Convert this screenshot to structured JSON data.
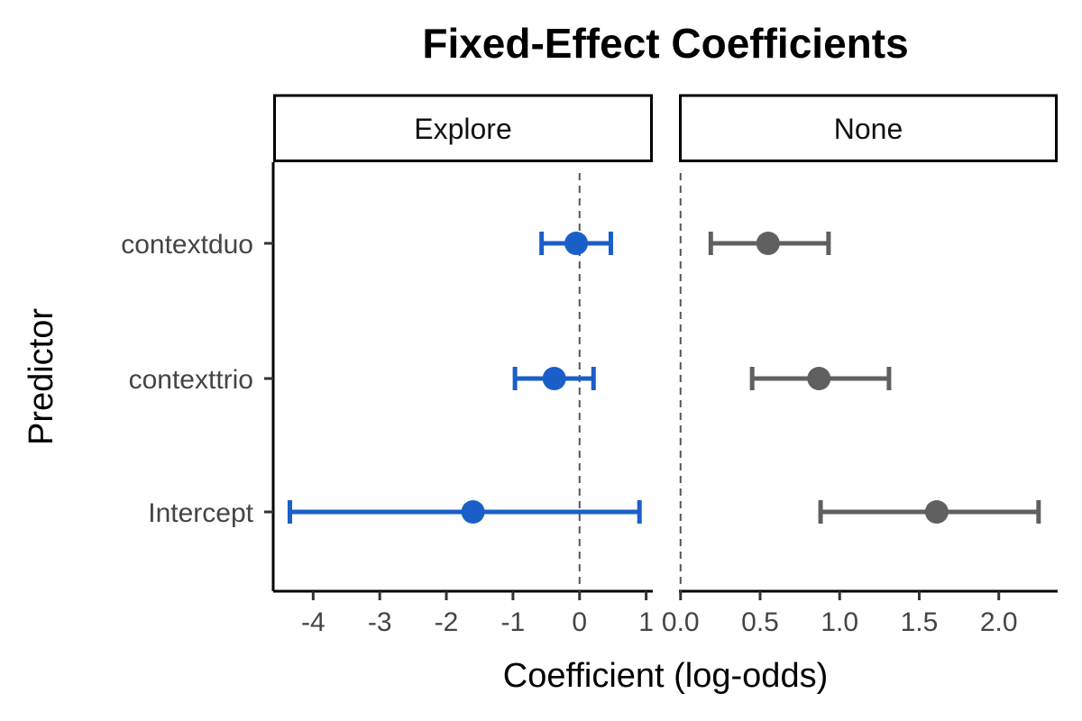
{
  "chart_data": {
    "type": "scatter",
    "variant": "coefficient-plot-with-error-bars",
    "title": "Fixed-Effect Coefficients",
    "xlabel": "Coefficient (log-odds)",
    "ylabel": "Predictor",
    "categories": [
      "contextduo",
      "contexttrio",
      "Intercept"
    ],
    "reference_line": 0,
    "grid": false,
    "legend": "none",
    "panels": [
      {
        "name": "Explore",
        "color": "#1a5fc8",
        "xlim": [
          -4.6,
          1.1
        ],
        "xticks": [
          -4,
          -3,
          -2,
          -1,
          0,
          1
        ],
        "xtick_labels": [
          "-4",
          "-3",
          "-2",
          "-1",
          "0",
          "1"
        ],
        "points": [
          {
            "predictor": "contextduo",
            "estimate": -0.05,
            "lower": -0.57,
            "upper": 0.47
          },
          {
            "predictor": "contexttrio",
            "estimate": -0.38,
            "lower": -0.97,
            "upper": 0.21
          },
          {
            "predictor": "Intercept",
            "estimate": -1.6,
            "lower": -4.35,
            "upper": 0.9
          }
        ]
      },
      {
        "name": "None",
        "color": "#606060",
        "xlim": [
          -0.01,
          2.37
        ],
        "xticks": [
          0,
          0.5,
          1,
          1.5,
          2
        ],
        "xtick_labels": [
          "0.0",
          "0.5",
          "1.0",
          "1.5",
          "2.0"
        ],
        "points": [
          {
            "predictor": "contextduo",
            "estimate": 0.55,
            "lower": 0.19,
            "upper": 0.93
          },
          {
            "predictor": "contexttrio",
            "estimate": 0.87,
            "lower": 0.45,
            "upper": 1.31
          },
          {
            "predictor": "Intercept",
            "estimate": 1.61,
            "lower": 0.88,
            "upper": 2.25
          }
        ]
      }
    ]
  }
}
